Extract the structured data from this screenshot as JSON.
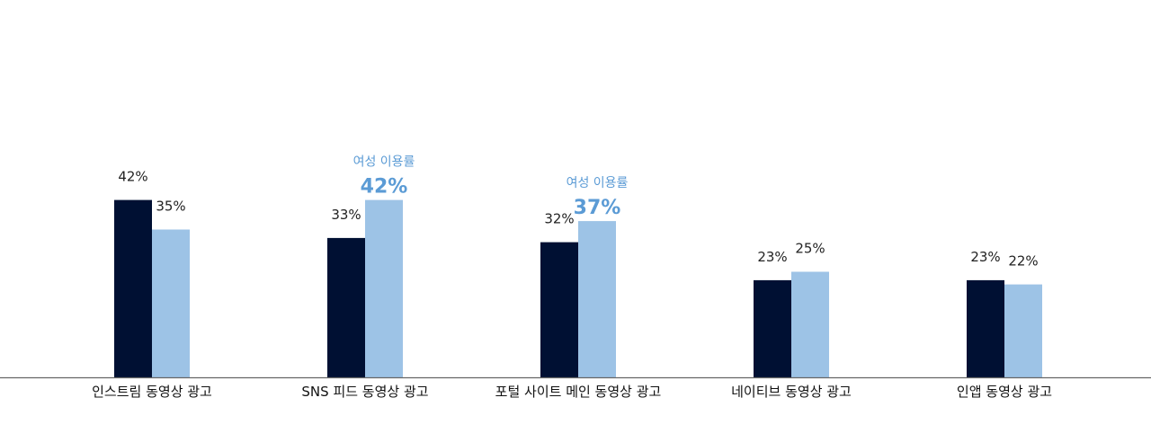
{
  "chart_data": {
    "type": "bar",
    "categories": [
      "인스트림 동영상 광고",
      "SNS 피드 동영상 광고",
      "포털 사이트 메인 동영상 광고",
      "네이티브 동영상 광고",
      "인앱 동영상 광고"
    ],
    "series": [
      {
        "values": [
          42,
          33,
          32,
          23,
          23
        ],
        "labels": [
          "42%",
          "33%",
          "32%",
          "23%",
          "23%"
        ],
        "color": "#001033"
      },
      {
        "values": [
          35,
          42,
          37,
          25,
          22
        ],
        "labels": [
          "35%",
          "42%",
          "37%",
          "25%",
          "22%"
        ],
        "color": "#9dc3e6"
      }
    ],
    "highlights": [
      {
        "category_index": 1,
        "series_index": 1,
        "caption": "여성 이용률"
      },
      {
        "category_index": 2,
        "series_index": 1,
        "caption": "여성 이용률"
      }
    ],
    "highlight_color": "#5b9bd5",
    "axis_color": "#666666",
    "ylim": [
      0,
      100
    ],
    "grid": false,
    "legend": "none",
    "title": "",
    "xlabel": "",
    "ylabel": ""
  }
}
